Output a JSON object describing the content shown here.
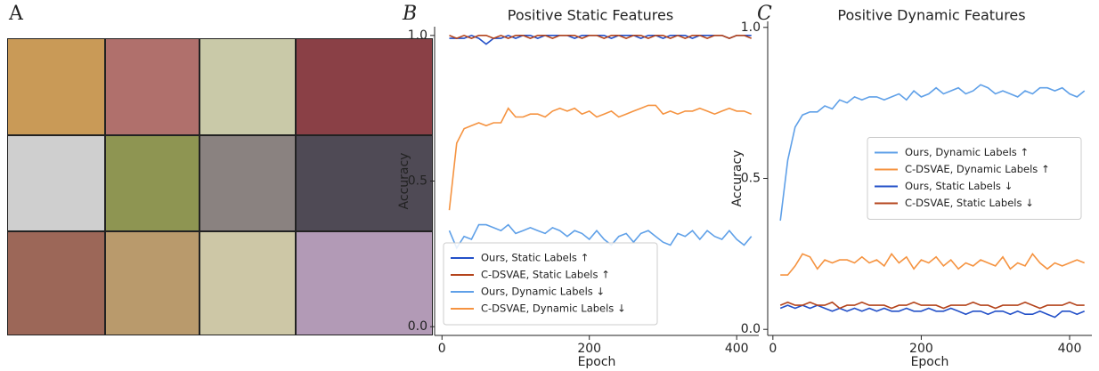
{
  "image_panel": {
    "label": "A"
  },
  "chart_data": [
    {
      "type": "line",
      "panel_label": "B",
      "title": "Positive Static Features",
      "x_label": "Epoch",
      "y_label": "Accuracy",
      "x": [
        10,
        20,
        30,
        40,
        50,
        60,
        70,
        80,
        90,
        100,
        110,
        120,
        130,
        140,
        150,
        160,
        170,
        180,
        190,
        200,
        210,
        220,
        230,
        240,
        250,
        260,
        270,
        280,
        290,
        300,
        310,
        320,
        330,
        340,
        350,
        360,
        370,
        380,
        390,
        400,
        410,
        420
      ],
      "xlim": [
        -10,
        430
      ],
      "xticks": [
        0,
        200,
        400
      ],
      "ylim": [
        -0.03,
        1.03
      ],
      "yticks": [
        {
          "value": 0,
          "label": "0.0"
        },
        {
          "value": 0.5,
          "label": "0.5"
        },
        {
          "value": 1,
          "label": "1.0"
        }
      ],
      "legend": "lower left",
      "series": [
        {
          "name": "Ours, Static Labels ↑",
          "color": "#2350c8",
          "values": [
            0.99,
            0.99,
            0.99,
            1.0,
            0.99,
            0.97,
            0.99,
            0.99,
            1.0,
            0.99,
            1.0,
            1.0,
            0.99,
            1.0,
            1.0,
            1.0,
            1.0,
            0.99,
            1.0,
            1.0,
            1.0,
            1.0,
            0.99,
            1.0,
            1.0,
            1.0,
            0.99,
            1.0,
            1.0,
            0.99,
            1.0,
            1.0,
            1.0,
            0.99,
            1.0,
            1.0,
            1.0,
            1.0,
            0.99,
            1.0,
            1.0,
            1.0
          ]
        },
        {
          "name": "C-DSVAE, Static Labels ↑",
          "color": "#b4441c",
          "values": [
            1.0,
            0.99,
            1.0,
            0.99,
            1.0,
            1.0,
            0.99,
            1.0,
            0.99,
            1.0,
            1.0,
            0.99,
            1.0,
            1.0,
            0.99,
            1.0,
            1.0,
            1.0,
            0.99,
            1.0,
            1.0,
            0.99,
            1.0,
            1.0,
            0.99,
            1.0,
            1.0,
            0.99,
            1.0,
            1.0,
            0.99,
            1.0,
            0.99,
            1.0,
            1.0,
            0.99,
            1.0,
            1.0,
            0.99,
            1.0,
            1.0,
            0.99
          ]
        },
        {
          "name": "Ours, Dynamic Labels ↓",
          "color": "#5fa0e8",
          "values": [
            0.33,
            0.27,
            0.31,
            0.3,
            0.35,
            0.35,
            0.34,
            0.33,
            0.35,
            0.32,
            0.33,
            0.34,
            0.33,
            0.32,
            0.34,
            0.33,
            0.31,
            0.33,
            0.32,
            0.3,
            0.33,
            0.3,
            0.28,
            0.31,
            0.32,
            0.29,
            0.32,
            0.33,
            0.31,
            0.29,
            0.28,
            0.32,
            0.31,
            0.33,
            0.3,
            0.33,
            0.31,
            0.3,
            0.33,
            0.3,
            0.28,
            0.31
          ]
        },
        {
          "name": "C-DSVAE, Dynamic Labels ↓",
          "color": "#f59340",
          "values": [
            0.4,
            0.63,
            0.68,
            0.69,
            0.7,
            0.69,
            0.7,
            0.7,
            0.75,
            0.72,
            0.72,
            0.73,
            0.73,
            0.72,
            0.74,
            0.75,
            0.74,
            0.75,
            0.73,
            0.74,
            0.72,
            0.73,
            0.74,
            0.72,
            0.73,
            0.74,
            0.75,
            0.76,
            0.76,
            0.73,
            0.74,
            0.73,
            0.74,
            0.74,
            0.75,
            0.74,
            0.73,
            0.74,
            0.75,
            0.74,
            0.74,
            0.73
          ]
        }
      ]
    },
    {
      "type": "line",
      "panel_label": "C",
      "title": "Positive Dynamic Features",
      "x_label": "Epoch",
      "y_label": "Accuracy",
      "x": [
        10,
        20,
        30,
        40,
        50,
        60,
        70,
        80,
        90,
        100,
        110,
        120,
        130,
        140,
        150,
        160,
        170,
        180,
        190,
        200,
        210,
        220,
        230,
        240,
        250,
        260,
        270,
        280,
        290,
        300,
        310,
        320,
        330,
        340,
        350,
        360,
        370,
        380,
        390,
        400,
        410,
        420
      ],
      "xlim": [
        -7,
        430
      ],
      "xticks": [
        0,
        200,
        400
      ],
      "ylim": [
        -0.02,
        1.02
      ],
      "yticks": [
        {
          "value": 0,
          "label": "0.0"
        },
        {
          "value": 0.5,
          "label": "0.5"
        },
        {
          "value": 1,
          "label": "1.0"
        }
      ],
      "legend": "center right",
      "series": [
        {
          "name": "Ours, Dynamic Labels ↑",
          "color": "#5fa0e8",
          "values": [
            0.36,
            0.56,
            0.67,
            0.71,
            0.72,
            0.72,
            0.74,
            0.73,
            0.76,
            0.75,
            0.77,
            0.76,
            0.77,
            0.77,
            0.76,
            0.77,
            0.78,
            0.76,
            0.79,
            0.77,
            0.78,
            0.8,
            0.78,
            0.79,
            0.8,
            0.78,
            0.79,
            0.81,
            0.8,
            0.78,
            0.79,
            0.78,
            0.77,
            0.79,
            0.78,
            0.8,
            0.8,
            0.79,
            0.8,
            0.78,
            0.77,
            0.79
          ]
        },
        {
          "name": "C-DSVAE, Dynamic Labels ↑",
          "color": "#f59340",
          "values": [
            0.18,
            0.18,
            0.21,
            0.25,
            0.24,
            0.2,
            0.23,
            0.22,
            0.23,
            0.23,
            0.22,
            0.24,
            0.22,
            0.23,
            0.21,
            0.25,
            0.22,
            0.24,
            0.2,
            0.23,
            0.22,
            0.24,
            0.21,
            0.23,
            0.2,
            0.22,
            0.21,
            0.23,
            0.22,
            0.21,
            0.24,
            0.2,
            0.22,
            0.21,
            0.25,
            0.22,
            0.2,
            0.22,
            0.21,
            0.22,
            0.23,
            0.22
          ]
        },
        {
          "name": "Ours, Static Labels ↓",
          "color": "#2350c8",
          "values": [
            0.07,
            0.08,
            0.07,
            0.08,
            0.07,
            0.08,
            0.07,
            0.06,
            0.07,
            0.06,
            0.07,
            0.06,
            0.07,
            0.06,
            0.07,
            0.06,
            0.06,
            0.07,
            0.06,
            0.06,
            0.07,
            0.06,
            0.06,
            0.07,
            0.06,
            0.05,
            0.06,
            0.06,
            0.05,
            0.06,
            0.06,
            0.05,
            0.06,
            0.05,
            0.05,
            0.06,
            0.05,
            0.04,
            0.06,
            0.06,
            0.05,
            0.06
          ]
        },
        {
          "name": "C-DSVAE, Static Labels ↓",
          "color": "#b4441c",
          "values": [
            0.08,
            0.09,
            0.08,
            0.08,
            0.09,
            0.08,
            0.08,
            0.09,
            0.07,
            0.08,
            0.08,
            0.09,
            0.08,
            0.08,
            0.08,
            0.07,
            0.08,
            0.08,
            0.09,
            0.08,
            0.08,
            0.08,
            0.07,
            0.08,
            0.08,
            0.08,
            0.09,
            0.08,
            0.08,
            0.07,
            0.08,
            0.08,
            0.08,
            0.09,
            0.08,
            0.07,
            0.08,
            0.08,
            0.08,
            0.09,
            0.08,
            0.08
          ]
        }
      ]
    }
  ]
}
